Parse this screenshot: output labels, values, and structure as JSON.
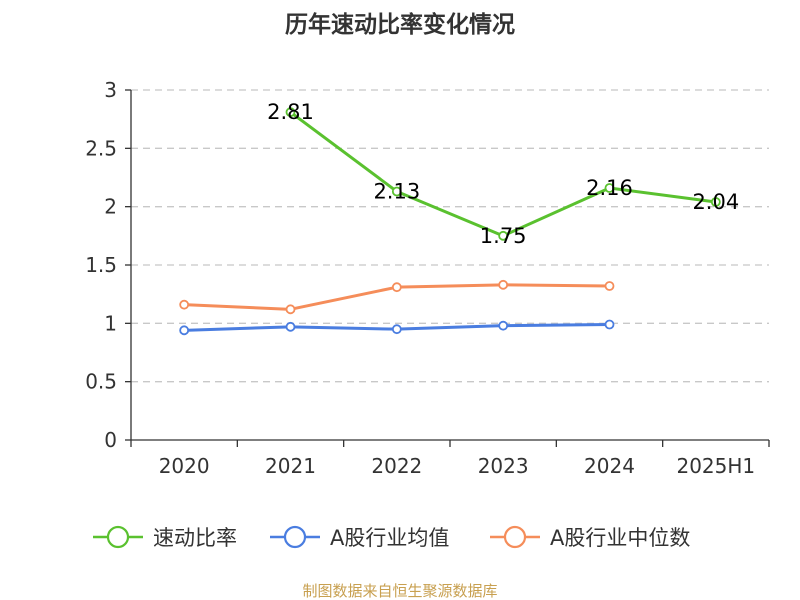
{
  "chart_data": {
    "type": "line",
    "title": "历年速动比率变化情况",
    "categories": [
      "2020",
      "2021",
      "2022",
      "2023",
      "2024",
      "2025H1"
    ],
    "ylim": [
      0,
      3
    ],
    "yticks": [
      "0",
      "0.5",
      "1",
      "1.5",
      "2",
      "2.5",
      "3"
    ],
    "ytick_values": [
      0,
      0.5,
      1,
      1.5,
      2,
      2.5,
      3
    ],
    "grid": true,
    "legend_position": "bottom",
    "series": [
      {
        "name": "速动比率",
        "color": "#5ac12f",
        "values": [
          null,
          2.81,
          2.13,
          1.75,
          2.16,
          2.04
        ],
        "labels": [
          "",
          "2.81",
          "2.13",
          "1.75",
          "2.16",
          "2.04"
        ],
        "show_labels": true
      },
      {
        "name": "A股行业均值",
        "color": "#4a7de0",
        "values": [
          0.94,
          0.97,
          0.95,
          0.98,
          0.99,
          null
        ],
        "show_labels": false
      },
      {
        "name": "A股行业中位数",
        "color": "#f58d5a",
        "values": [
          1.16,
          1.12,
          1.31,
          1.33,
          1.32,
          null
        ],
        "show_labels": false
      }
    ]
  },
  "source": "制图数据来自恒生聚源数据库"
}
